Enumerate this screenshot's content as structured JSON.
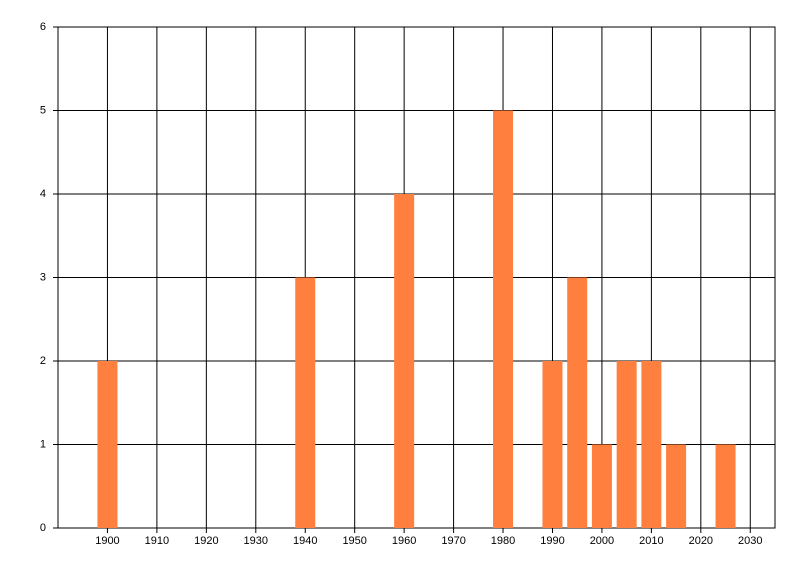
{
  "chart_data": {
    "type": "bar",
    "x": [
      1900,
      1940,
      1960,
      1980,
      1990,
      1995,
      2000,
      2005,
      2010,
      2015,
      2025
    ],
    "values": [
      2,
      3,
      4,
      5,
      2,
      3,
      1,
      2,
      2,
      1,
      1
    ],
    "color": "#ff7f3f",
    "xlim": [
      1890,
      2035
    ],
    "xticks": [
      1900,
      1910,
      1920,
      1930,
      1940,
      1950,
      1960,
      1970,
      1980,
      1990,
      2000,
      2010,
      2020,
      2030
    ],
    "ylim": [
      0,
      6
    ],
    "yticks": [
      0,
      1,
      2,
      3,
      4,
      5,
      6
    ],
    "grid": true
  }
}
